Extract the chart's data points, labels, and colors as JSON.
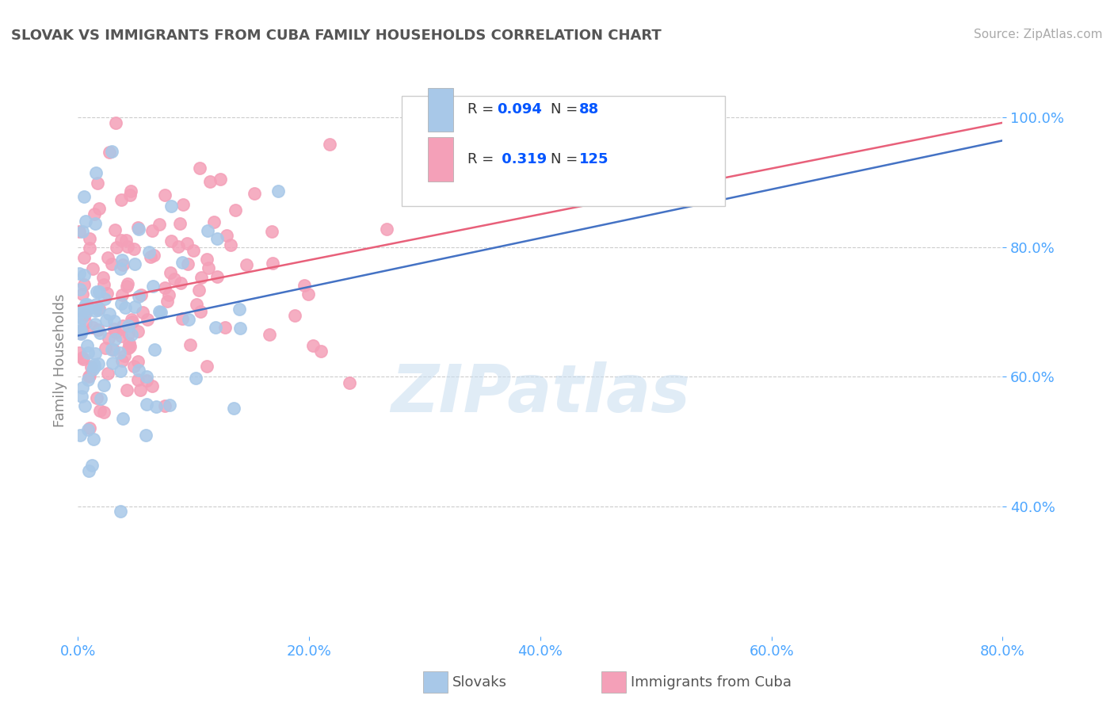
{
  "title": "SLOVAK VS IMMIGRANTS FROM CUBA FAMILY HOUSEHOLDS CORRELATION CHART",
  "source_text": "Source: ZipAtlas.com",
  "ylabel": "Family Households",
  "series": [
    {
      "name": "Slovaks",
      "R": 0.094,
      "N": 88,
      "scatter_color": "#a8c8e8",
      "scatter_edge": "#7aacd4",
      "line_color": "#4472c4"
    },
    {
      "name": "Immigrants from Cuba",
      "R": 0.319,
      "N": 125,
      "scatter_color": "#f4a0b8",
      "scatter_edge": "#e07898",
      "line_color": "#e8607a"
    }
  ],
  "xlim": [
    0.0,
    0.8
  ],
  "ylim": [
    0.2,
    1.05
  ],
  "yticks": [
    0.4,
    0.6,
    0.8,
    1.0
  ],
  "yticklabels": [
    "40.0%",
    "60.0%",
    "80.0%",
    "100.0%"
  ],
  "xticks": [
    0.0,
    0.2,
    0.4,
    0.6,
    0.8
  ],
  "xticklabels": [
    "0.0%",
    "20.0%",
    "40.0%",
    "60.0%",
    "80.0%"
  ],
  "watermark": "ZIPatlas",
  "background_color": "#ffffff",
  "grid_color": "#cccccc",
  "tick_color": "#4da6ff",
  "title_color": "#555555"
}
